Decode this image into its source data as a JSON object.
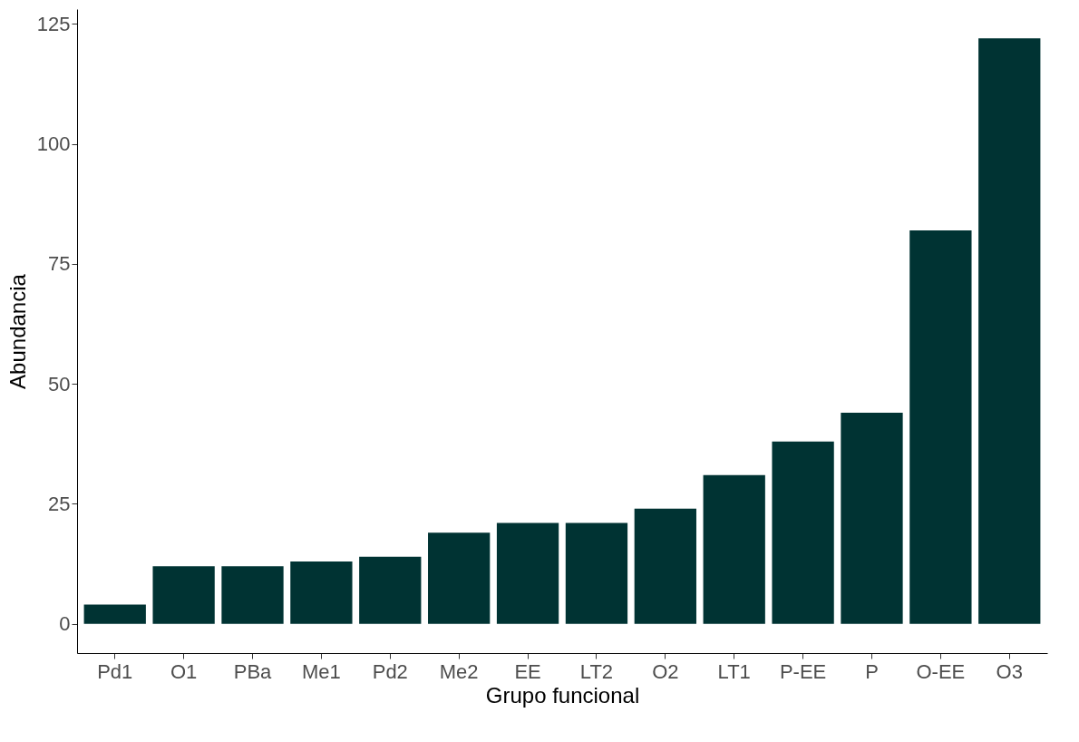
{
  "chart_data": {
    "type": "bar",
    "xlabel": "Grupo funcional",
    "ylabel": "Abundancia",
    "categories": [
      "Pd1",
      "O1",
      "PBa",
      "Me1",
      "Pd2",
      "Me2",
      "EE",
      "LT2",
      "O2",
      "LT1",
      "P-EE",
      "P",
      "O-EE",
      "O3"
    ],
    "values": [
      4,
      12,
      12,
      13,
      14,
      19,
      21,
      21,
      24,
      31,
      38,
      44,
      82,
      122
    ],
    "color": "#003333",
    "ylim": [
      -6.1,
      128.1
    ],
    "yticks": [
      0,
      25,
      50,
      75,
      100,
      125
    ],
    "grid": false
  }
}
